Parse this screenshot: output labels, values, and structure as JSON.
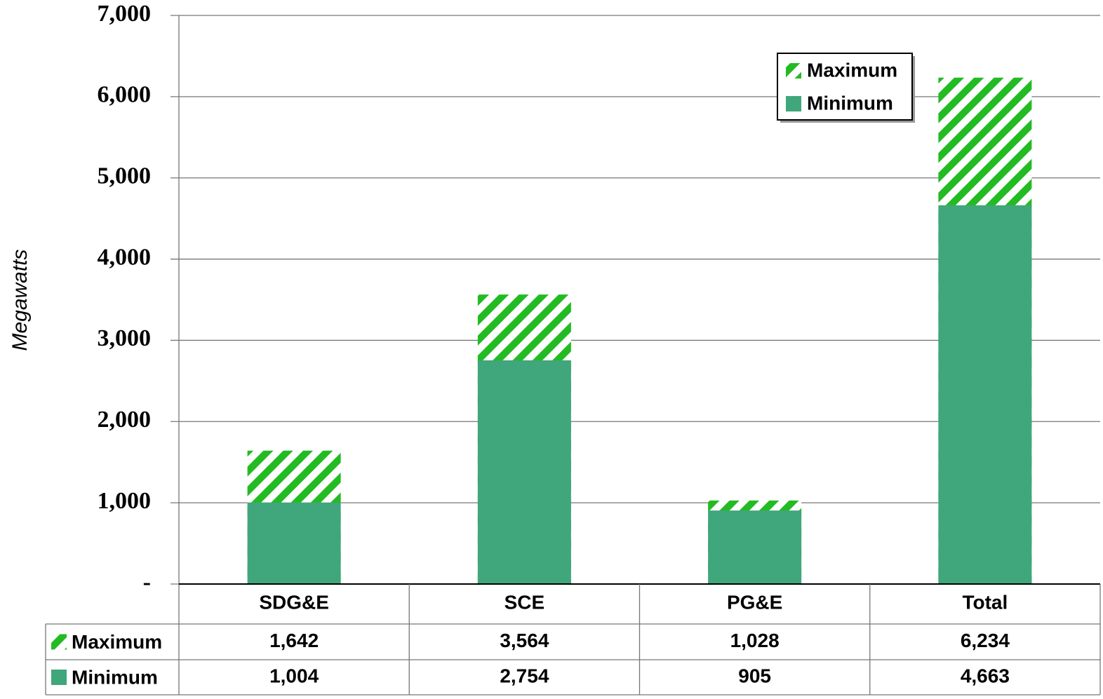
{
  "chart_data": {
    "type": "bar",
    "y_label": "Megawatts",
    "categories": [
      "SDG&E",
      "SCE",
      "PG&E",
      "Total"
    ],
    "series": [
      {
        "name": "Maximum",
        "color": "#22bb22",
        "pattern": "diagonal-stripes",
        "values": [
          1642,
          3564,
          1028,
          6234
        ],
        "value_labels": [
          "1,642",
          "3,564",
          "1,028",
          "6,234"
        ]
      },
      {
        "name": "Minimum",
        "color": "#40a67b",
        "values": [
          1004,
          2754,
          905,
          4663
        ],
        "value_labels": [
          "1,004",
          "2,754",
          "905",
          "4,663"
        ]
      }
    ],
    "ylim": [
      0,
      7000
    ],
    "yticks": [
      {
        "value": 0,
        "label": "-"
      },
      {
        "value": 1000,
        "label": "1,000"
      },
      {
        "value": 2000,
        "label": "2,000"
      },
      {
        "value": 3000,
        "label": "3,000"
      },
      {
        "value": 4000,
        "label": "4,000"
      },
      {
        "value": 5000,
        "label": "5,000"
      },
      {
        "value": 6000,
        "label": "6,000"
      },
      {
        "value": 7000,
        "label": "7,000"
      }
    ],
    "grid": true,
    "legend": "upper right",
    "data_table": true
  }
}
